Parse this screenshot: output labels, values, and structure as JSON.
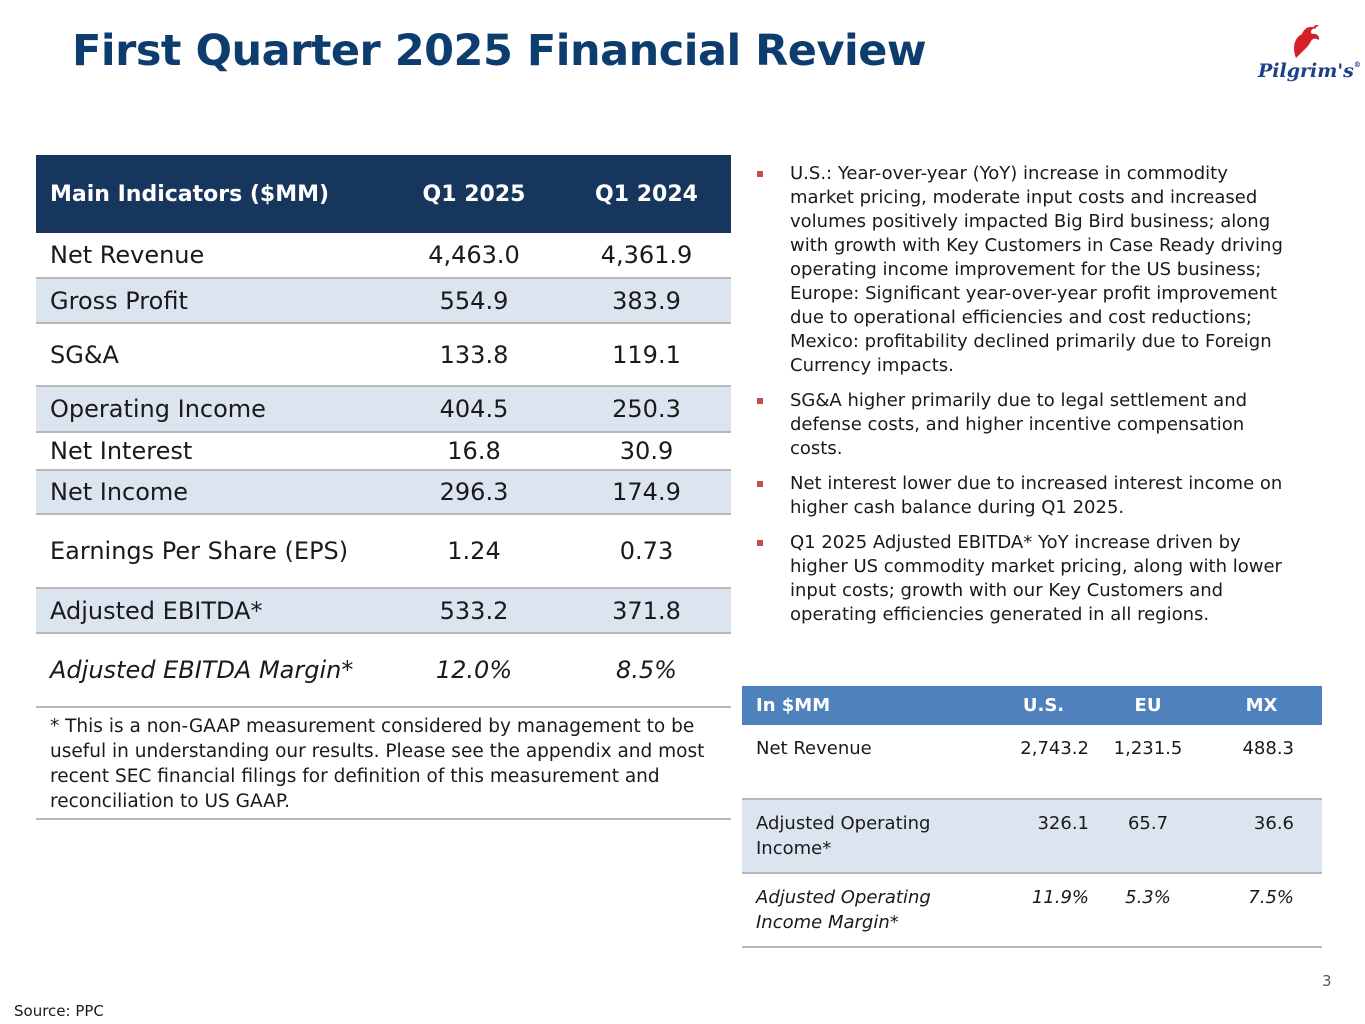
{
  "title": "First Quarter 2025 Financial Review",
  "logo": {
    "text": "Pilgrim's",
    "registered": "®",
    "icon": "rooster-icon"
  },
  "main_table": {
    "headers": [
      "Main Indicators ($MM)",
      "Q1 2025",
      "Q1 2024"
    ],
    "rows": [
      {
        "label": "Net Revenue",
        "q1_2025": "4,463.0",
        "q1_2024": "4,361.9"
      },
      {
        "label": "Gross Profit",
        "q1_2025": "554.9",
        "q1_2024": "383.9"
      },
      {
        "label": "SG&A",
        "q1_2025": "133.8",
        "q1_2024": "119.1"
      },
      {
        "label": "Operating Income",
        "q1_2025": "404.5",
        "q1_2024": "250.3"
      },
      {
        "label": "Net Interest",
        "q1_2025": "16.8",
        "q1_2024": "30.9"
      },
      {
        "label": "Net Income",
        "q1_2025": "296.3",
        "q1_2024": "174.9"
      },
      {
        "label": "Earnings Per Share (EPS)",
        "q1_2025": "1.24",
        "q1_2024": "0.73"
      },
      {
        "label": "Adjusted EBITDA*",
        "q1_2025": "533.2",
        "q1_2024": "371.8"
      },
      {
        "label": "Adjusted EBITDA Margin*",
        "q1_2025": "12.0%",
        "q1_2024": "8.5%"
      }
    ],
    "footnote": "* This is a non-GAAP measurement considered by management to be useful in understanding our results. Please see the appendix and most recent SEC financial filings for definition of this measurement and reconciliation to US GAAP."
  },
  "bullets": [
    "U.S.: Year-over-year (YoY) increase in commodity market pricing, moderate input costs and increased volumes positively impacted Big Bird business; along with growth with Key Customers in Case Ready driving operating income improvement for the US business; Europe: Significant year-over-year profit improvement due to operational efficiencies and cost reductions; Mexico: profitability declined primarily due to Foreign Currency impacts.",
    "SG&A higher primarily due to legal settlement and defense costs, and higher incentive compensation costs.",
    "Net interest lower due to increased interest income on higher cash balance during Q1 2025.",
    "Q1 2025 Adjusted EBITDA* YoY increase driven by higher US commodity market pricing, along with lower input costs; growth with our Key Customers and operating efficiencies generated in all regions."
  ],
  "segment_table": {
    "headers": [
      "In $MM",
      "U.S.",
      "EU",
      "MX"
    ],
    "rows": [
      {
        "label": "Net Revenue",
        "us": "2,743.2",
        "eu": "1,231.5",
        "mx": "488.3"
      },
      {
        "label": "Adjusted Operating Income*",
        "us": "326.1",
        "eu": "65.7",
        "mx": "36.6"
      },
      {
        "label": "Adjusted Operating Income Margin*",
        "us": "11.9%",
        "eu": "5.3%",
        "mx": "7.5%"
      }
    ]
  },
  "source": "Source: PPC",
  "page_number": "3",
  "colors": {
    "title": "#0d3c6e",
    "main_header": "#17365d",
    "segment_header": "#4f81bd",
    "row_alt": "#dbe4ef",
    "bullet": "#c0504d"
  }
}
